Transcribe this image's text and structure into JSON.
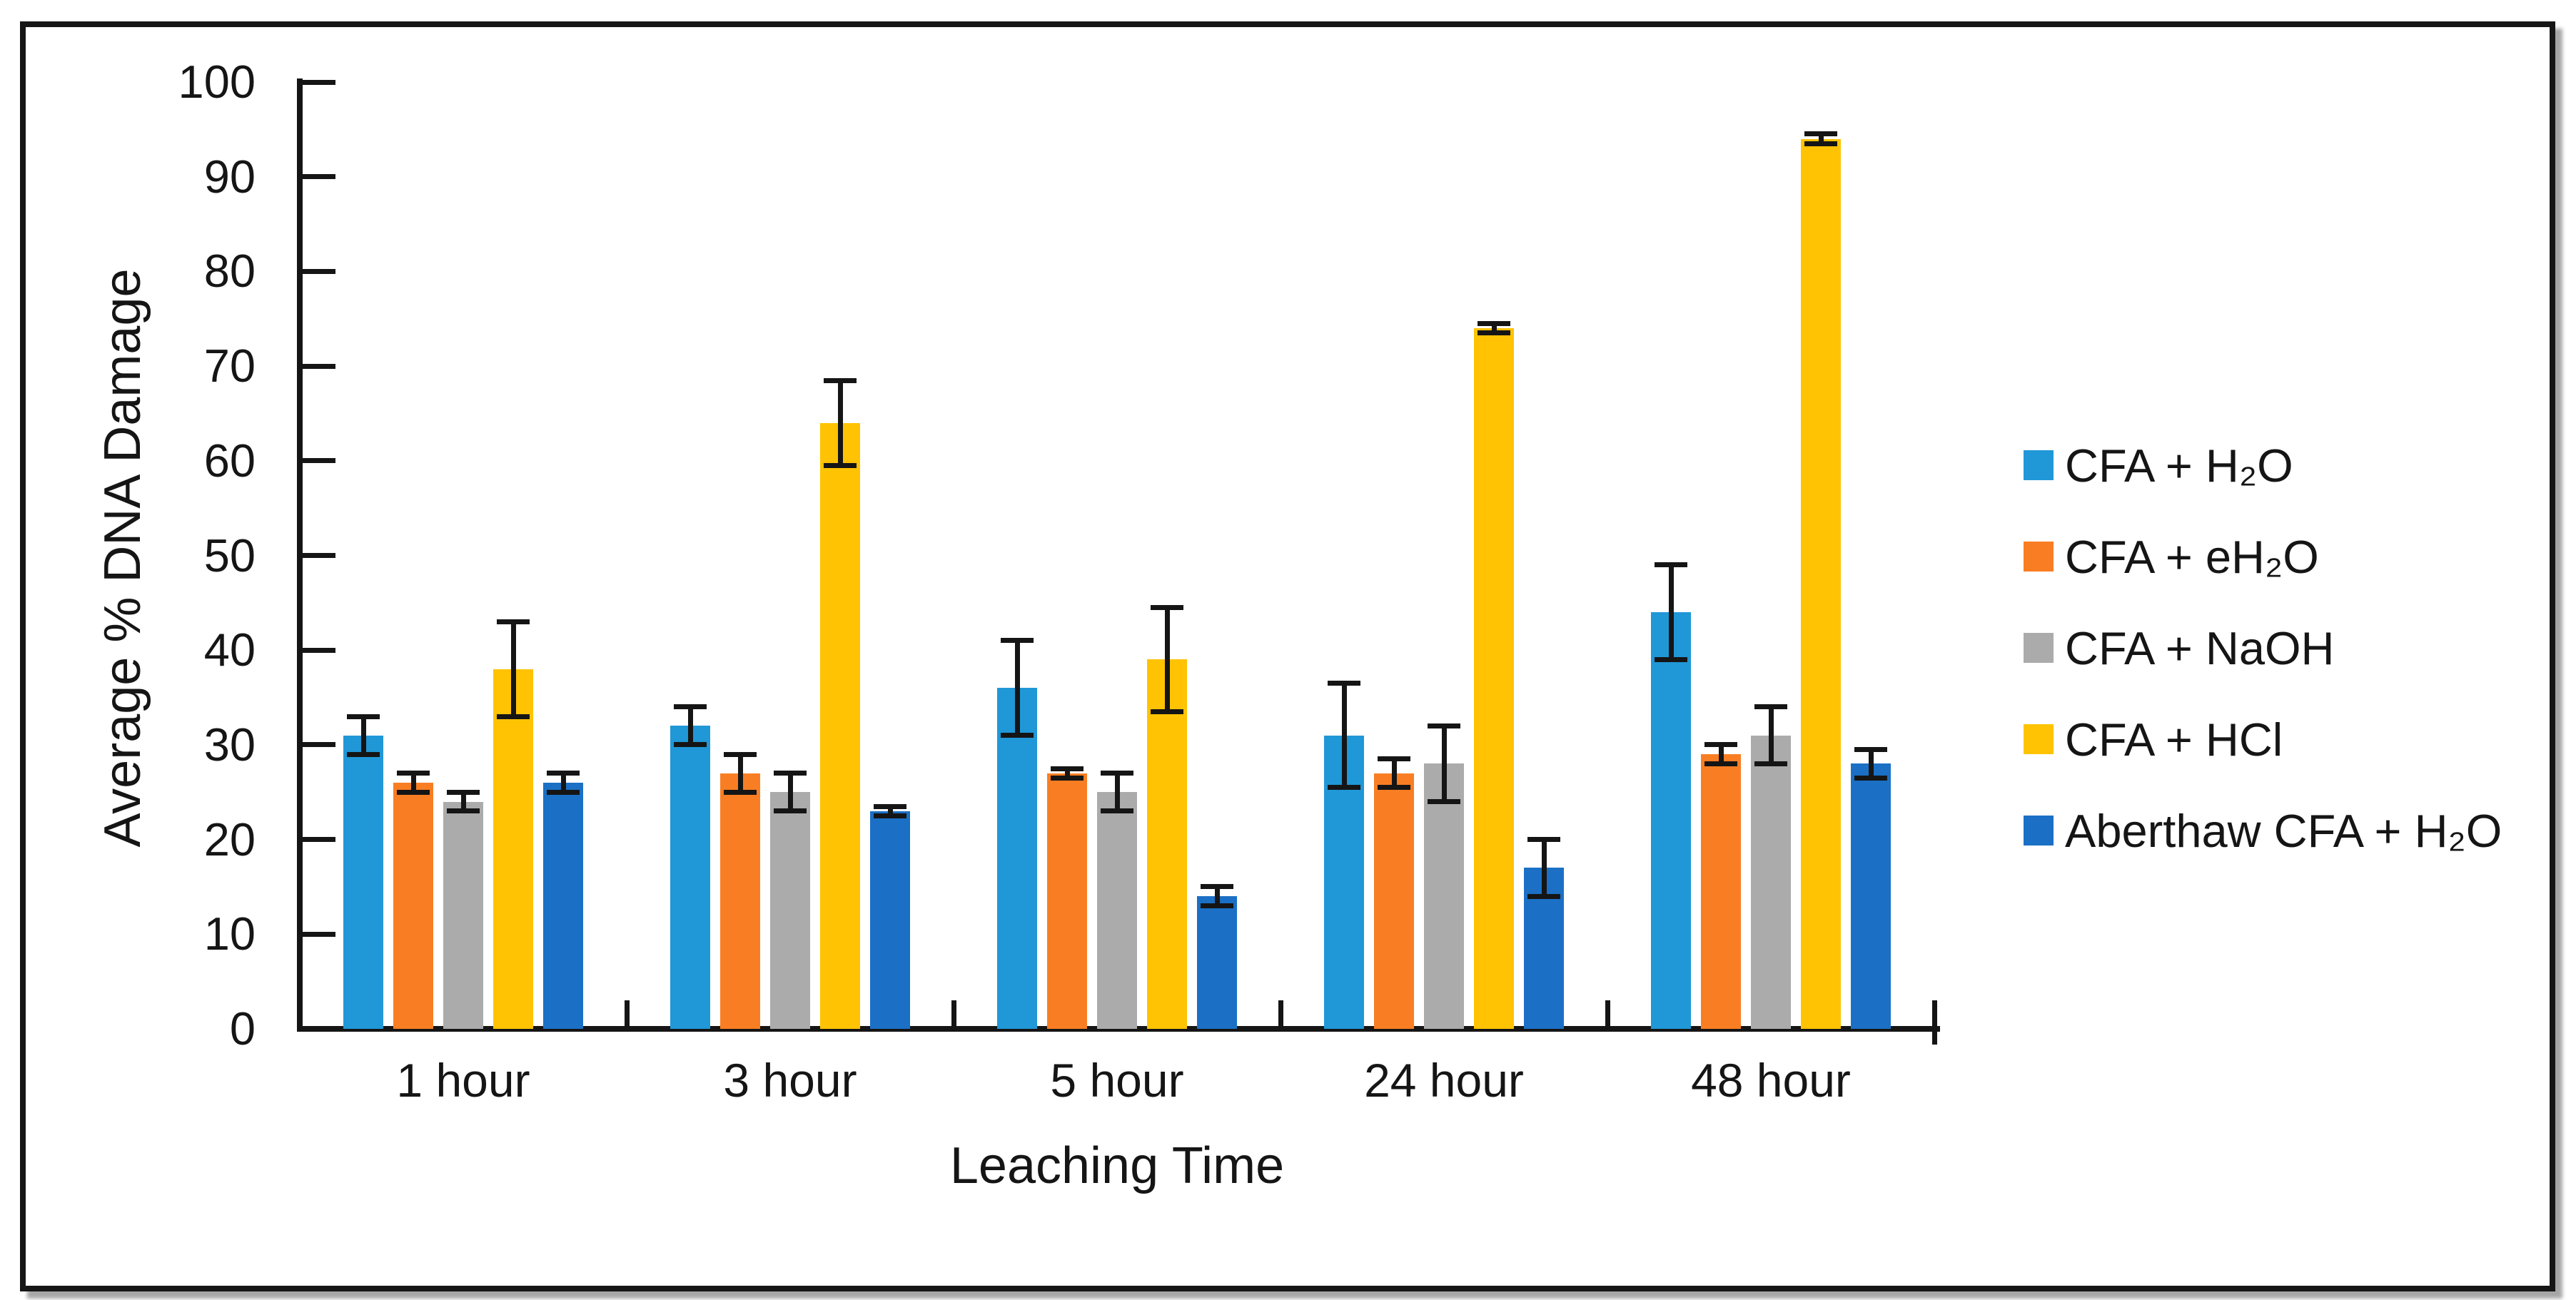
{
  "figure": {
    "background_color": "#ffffff",
    "border_color": "#161616",
    "text_color": "#151515"
  },
  "chart_data": {
    "type": "bar",
    "title": "",
    "xlabel": "Leaching Time",
    "ylabel": "Average % DNA Damage",
    "categories": [
      "1 hour",
      "3 hour",
      "5 hour",
      "24 hour",
      "48 hour"
    ],
    "series": [
      {
        "name": "CFA + H₂O",
        "color": "#2097D7",
        "values": [
          31,
          32,
          36,
          31,
          44
        ],
        "errors": [
          2,
          2,
          5,
          5.5,
          5
        ]
      },
      {
        "name": "CFA + eH₂O",
        "color": "#F97E23",
        "values": [
          26,
          27,
          27,
          27,
          29
        ],
        "errors": [
          1,
          2,
          0.5,
          1.5,
          1
        ]
      },
      {
        "name": "CFA + NaOH",
        "color": "#ABABAB",
        "values": [
          24,
          25,
          25,
          28,
          31
        ],
        "errors": [
          1,
          2,
          2,
          4,
          3
        ]
      },
      {
        "name": "CFA + HCl",
        "color": "#FFC303",
        "values": [
          38,
          64,
          39,
          74,
          94
        ],
        "errors": [
          5,
          4.5,
          5.5,
          0.5,
          0.5
        ]
      },
      {
        "name": "Aberthaw CFA + H₂O",
        "color": "#1B70C5",
        "values": [
          26,
          23,
          14,
          17,
          28
        ],
        "errors": [
          1,
          0.5,
          1,
          3,
          1.5
        ]
      }
    ],
    "ylim": [
      0,
      100
    ],
    "ytick_step": 10,
    "ytick_labels": [
      "0",
      "10",
      "20",
      "30",
      "40",
      "50",
      "60",
      "70",
      "80",
      "90",
      "100"
    ],
    "grid": false,
    "error_bars": true,
    "legend_position": "right"
  }
}
